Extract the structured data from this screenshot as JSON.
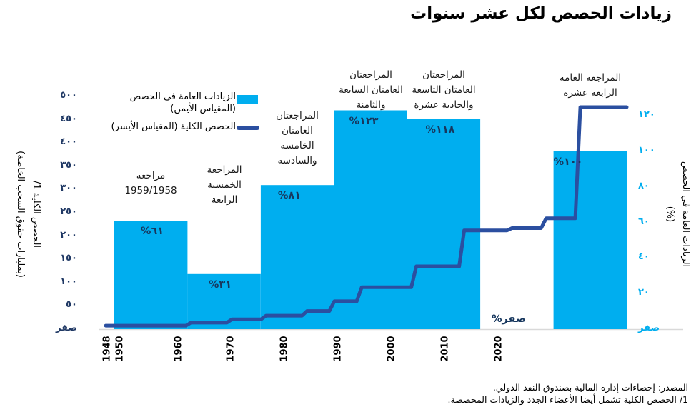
{
  "title": "زيادات الحصص لكل عشر سنوات",
  "colors": {
    "bar": "#00AEEF",
    "line": "#2B4FA0",
    "left_axis_numbers": "#1F3864",
    "right_axis_numbers": "#00AEEF",
    "percent_labels": "#17375E",
    "baseline": "#D9D9D9"
  },
  "legend": {
    "bars_label_line1": "الزيادات العامة في الحصص",
    "bars_label_line2": "(المقياس الأيمن)",
    "line_label": "الحصص الكلية (المقياس الأيسر)"
  },
  "left_axis": {
    "title_line1": "الحصص الكلية 1/",
    "title_line2": "(بمليارات حقوق السحب الخاصة)",
    "tick_labels": [
      "٥٠٠",
      "٤٥٠",
      "٤٠٠",
      "٣٥٠",
      "٣٠٠",
      "٢٥٠",
      "٢٠٠",
      "١٥٠",
      "١٠٠",
      "٥٠",
      "صفر"
    ],
    "tick_values": [
      500,
      450,
      400,
      350,
      300,
      250,
      200,
      150,
      100,
      50,
      0
    ]
  },
  "right_axis": {
    "title_line1": "الزيادات العامة في الحصص",
    "title_line2": "(%)",
    "tick_labels": [
      "١٢٠",
      "١٠٠",
      "٨٠",
      "٦٠",
      "٤٠",
      "٢٠",
      "صفر"
    ],
    "tick_values": [
      120,
      100,
      80,
      60,
      40,
      20,
      0
    ]
  },
  "x_axis": {
    "tick_labels": [
      "1948",
      "1950",
      "1960",
      "1970",
      "1980",
      "1990",
      "2000",
      "2010",
      "2020"
    ]
  },
  "chart_data": {
    "type": "combo (decade bars + stepped line)",
    "title": "زيادات الحصص لكل عشر سنوات",
    "right_ylim": [
      0,
      120
    ],
    "left_ylim": [
      0,
      500
    ],
    "bars_axis": "right (%)",
    "line_axis": "left (billions of SDRs)",
    "bars": [
      {
        "label_lines": [
          "مراجعة",
          "1959/1958"
        ],
        "pct": 61,
        "pct_label": "٦١%"
      },
      {
        "label_lines": [
          "المراجعة",
          "الخمسية",
          "الرابعة"
        ],
        "pct": 31,
        "pct_label": "٣١%"
      },
      {
        "label_lines": [
          "المراجعتان",
          "العامتان",
          "الخامسة",
          "والسادسة"
        ],
        "pct": 81,
        "pct_label": "٨١%"
      },
      {
        "label_lines": [
          "المراجعتان",
          "العامتان السابعة",
          "والثامنة"
        ],
        "pct": 123,
        "pct_label": "١٢٣%"
      },
      {
        "label_lines": [
          "المراجعتان",
          "العامتان التاسعة",
          "والحادية عشرة"
        ],
        "pct": 118,
        "pct_label": "١١٨%"
      },
      {
        "label_lines": [],
        "pct": 0,
        "pct_label": "صفر%"
      },
      {
        "label_lines": [
          "المراجعة العامة",
          "الرابعة عشرة"
        ],
        "pct": 100,
        "pct_label": "١٠٠%"
      }
    ],
    "line_steps": [
      {
        "year": 1948,
        "value": 7.5
      },
      {
        "year": 1959,
        "value": 14
      },
      {
        "year": 1965,
        "value": 21
      },
      {
        "year": 1970,
        "value": 29
      },
      {
        "year": 1976,
        "value": 39
      },
      {
        "year": 1980,
        "value": 60
      },
      {
        "year": 1984,
        "value": 90
      },
      {
        "year": 1992,
        "value": 135
      },
      {
        "year": 1999,
        "value": 212
      },
      {
        "year": 2006,
        "value": 217
      },
      {
        "year": 2011,
        "value": 238
      },
      {
        "year": 2016,
        "value": 477
      },
      {
        "year": 2023,
        "value": 477
      }
    ]
  },
  "footer": {
    "line1": "المصدر: إحصاءات إدارة المالية بصندوق النقد الدولي.",
    "line2": "1/ الحصص الكلية تشمل أيضا الأعضاء الجدد والزيادات المخصصة."
  }
}
